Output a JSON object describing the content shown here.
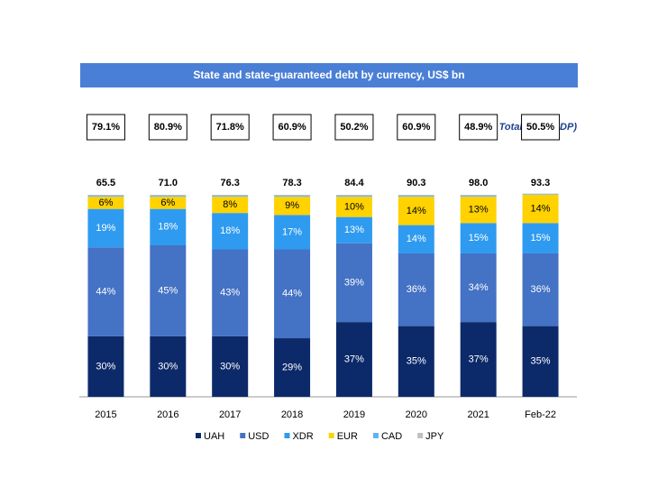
{
  "chart_data": {
    "type": "bar",
    "stacked": true,
    "title": "State and state-guaranteed debt by currency, US$ bn",
    "categories": [
      "2015",
      "2016",
      "2017",
      "2018",
      "2019",
      "2020",
      "2021",
      "Feb-22"
    ],
    "ylim": [
      0,
      100
    ],
    "totals": {
      "values": [
        65.5,
        71.0,
        76.3,
        78.3,
        84.4,
        90.3,
        98.0,
        93.3
      ],
      "value_labels": [
        "65.5",
        "71.0",
        "76.3",
        "78.3",
        "84.4",
        "90.3",
        "98.0",
        "93.3"
      ]
    },
    "gdp_share": {
      "name": "Total (% of GDP)",
      "values": [
        79.1,
        80.9,
        71.8,
        60.9,
        50.2,
        60.9,
        48.9,
        50.5
      ],
      "value_labels": [
        "79.1%",
        "80.9%",
        "71.8%",
        "60.9%",
        "50.2%",
        "60.9%",
        "48.9%",
        "50.5%"
      ]
    },
    "series": [
      {
        "name": "UAH",
        "color": "#0c2a6a",
        "label_color": "#ffffff",
        "values": [
          30,
          30,
          30,
          29,
          37,
          35,
          37,
          35
        ],
        "value_labels": [
          "30%",
          "30%",
          "30%",
          "29%",
          "37%",
          "35%",
          "37%",
          "35%"
        ]
      },
      {
        "name": "USD",
        "color": "#4472c4",
        "label_color": "#ffffff",
        "values": [
          44,
          45,
          43,
          44,
          39,
          36,
          34,
          36
        ],
        "value_labels": [
          "44%",
          "45%",
          "43%",
          "44%",
          "39%",
          "36%",
          "34%",
          "36%"
        ]
      },
      {
        "name": "XDR",
        "color": "#2f9bf0",
        "label_color": "#ffffff",
        "values": [
          19,
          18,
          18,
          17,
          13,
          14,
          15,
          15
        ],
        "value_labels": [
          "19%",
          "18%",
          "18%",
          "17%",
          "13%",
          "14%",
          "15%",
          "15%"
        ]
      },
      {
        "name": "EUR",
        "color": "#ffd200",
        "label_color": "#000000",
        "values": [
          6,
          6,
          8,
          9,
          10,
          14,
          13,
          14
        ],
        "value_labels": [
          "6%",
          "6%",
          "8%",
          "9%",
          "10%",
          "14%",
          "13%",
          "14%"
        ]
      },
      {
        "name": "CAD",
        "color": "#5fb3f2",
        "values": [
          0.5,
          0.5,
          0.5,
          0.5,
          0.5,
          0.5,
          0.5,
          0.3
        ]
      },
      {
        "name": "JPY",
        "color": "#bfbfbf",
        "values": [
          0.5,
          0.5,
          0.5,
          0.5,
          0.5,
          0.5,
          0.5,
          0.3
        ]
      }
    ]
  }
}
